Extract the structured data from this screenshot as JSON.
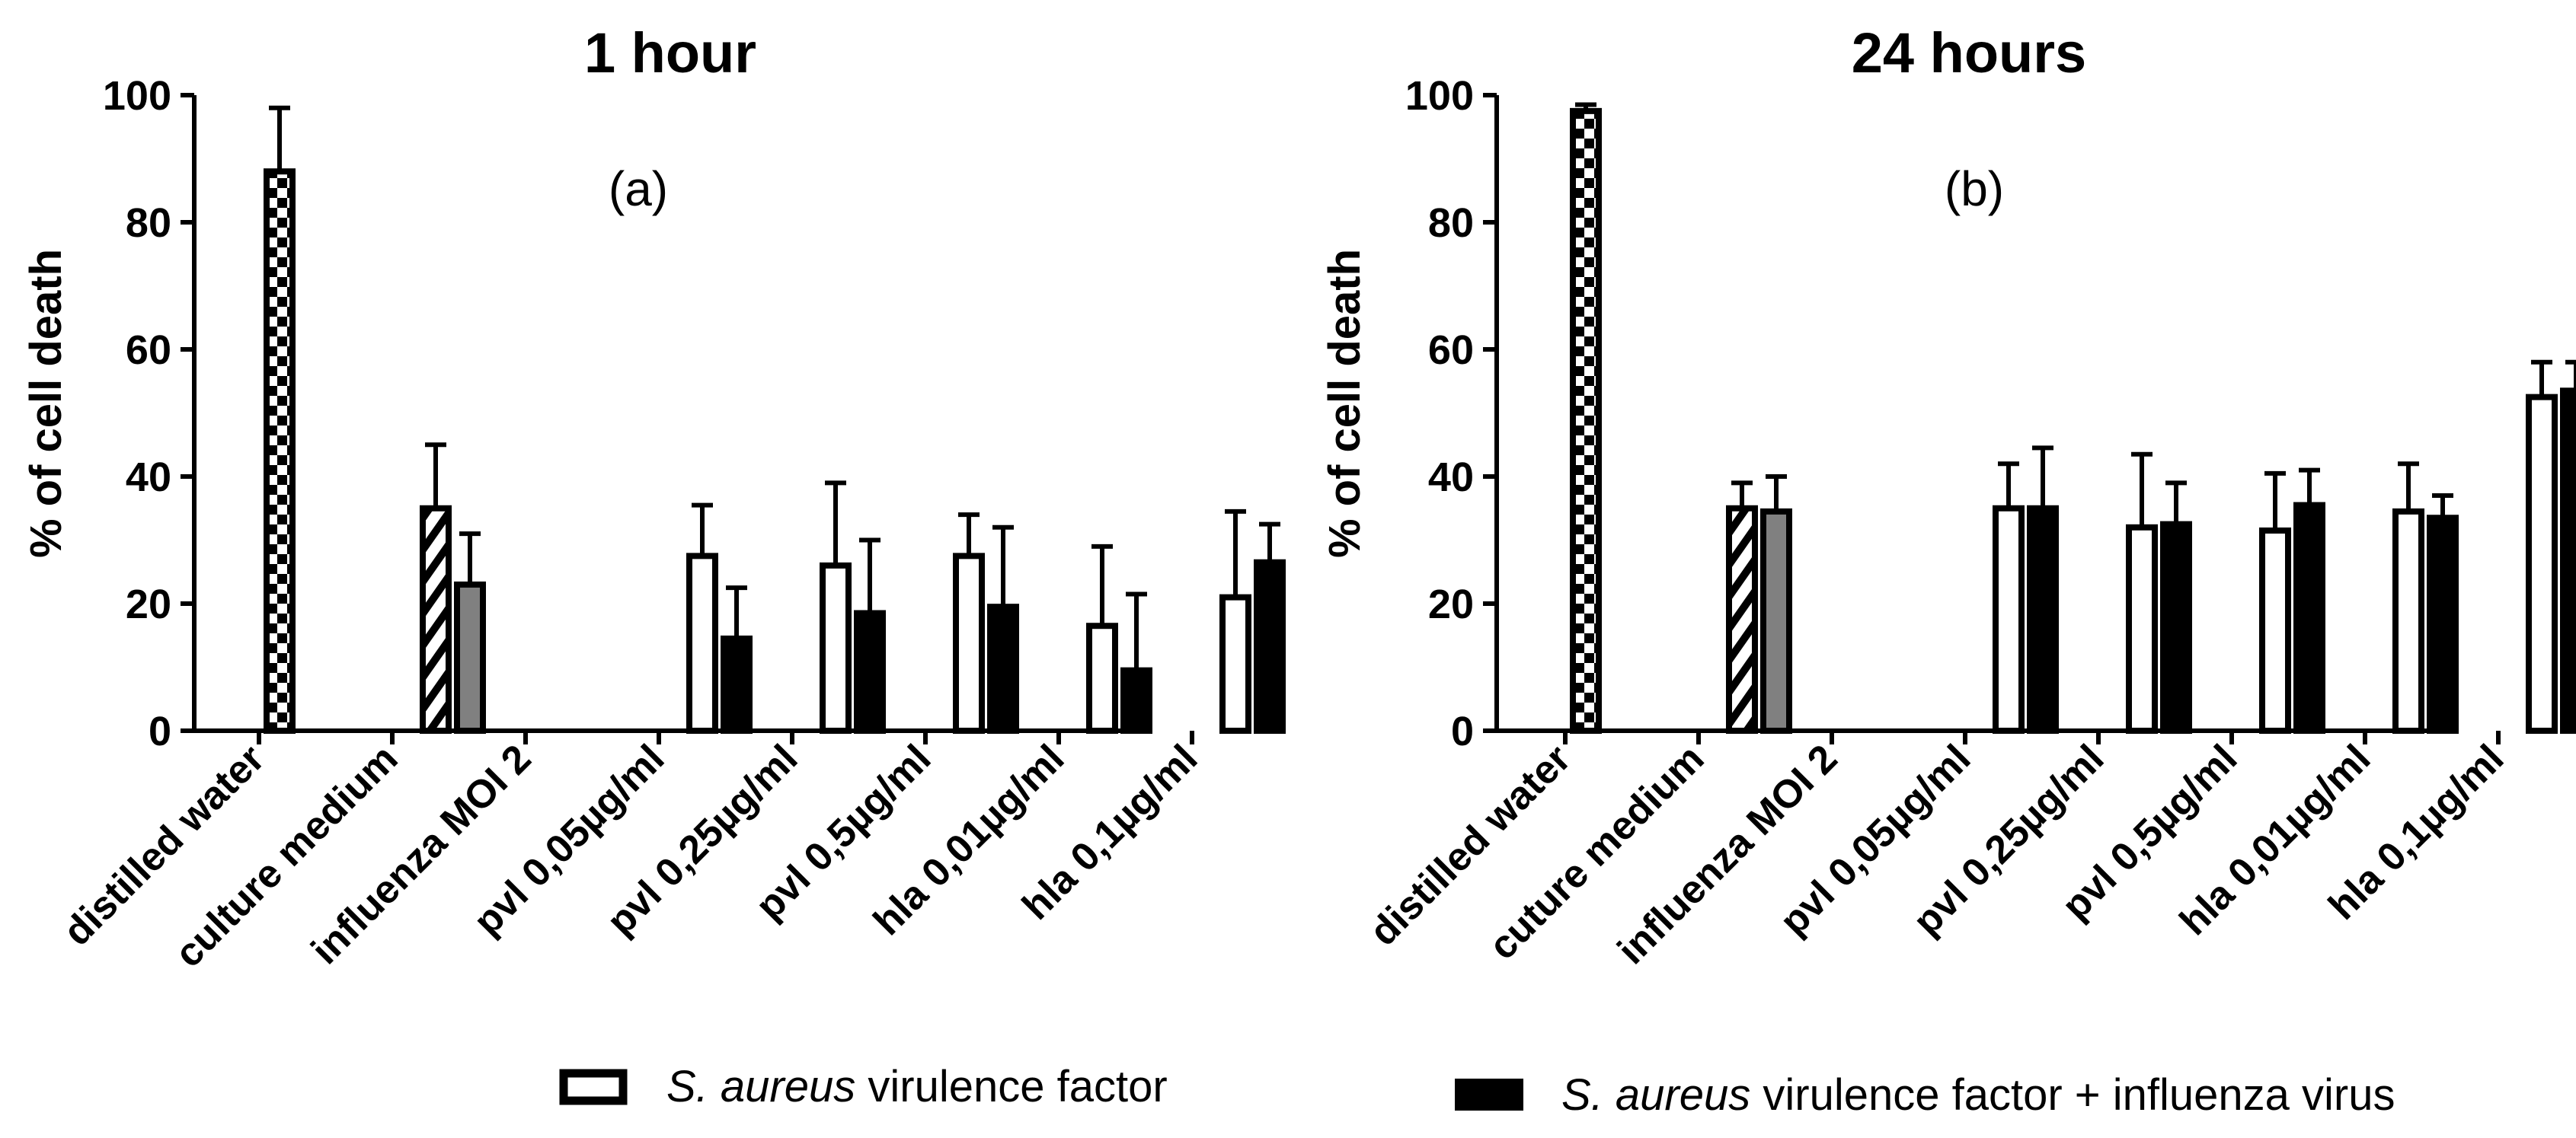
{
  "chart_data": [
    {
      "type": "bar",
      "title": "1 hour",
      "panel_label": "(a)",
      "ylabel": "% of cell death",
      "ylim": [
        0,
        100
      ],
      "yticks": [
        0,
        20,
        40,
        60,
        80,
        100
      ],
      "categories": [
        "distilled water",
        "culture medium",
        "influenza MOI 2",
        "pvl 0,05µg/ml",
        "pvl 0,25µg/ml",
        "pvl 0,5µg/ml",
        "hla 0,01µg/ml",
        "hla 0,1µg/ml"
      ],
      "bars": [
        {
          "category": 0,
          "style": "checker",
          "value": 88,
          "error": 10
        },
        {
          "category": 1,
          "style": "hatch",
          "value": 35,
          "error": 10
        },
        {
          "category": 1,
          "style": "gray",
          "value": 23,
          "error": 8
        },
        {
          "category": 3,
          "style": "white",
          "value": 27.5,
          "error": 8
        },
        {
          "category": 3,
          "style": "black",
          "value": 14.5,
          "error": 8
        },
        {
          "category": 4,
          "style": "white",
          "value": 26,
          "error": 13
        },
        {
          "category": 4,
          "style": "black",
          "value": 18.5,
          "error": 11.5
        },
        {
          "category": 5,
          "style": "white",
          "value": 27.5,
          "error": 6.5
        },
        {
          "category": 5,
          "style": "black",
          "value": 19.5,
          "error": 12.5
        },
        {
          "category": 6,
          "style": "white",
          "value": 16.5,
          "error": 12.5
        },
        {
          "category": 6,
          "style": "black",
          "value": 9.5,
          "error": 12
        },
        {
          "category": 7,
          "style": "white",
          "value": 21,
          "error": 13.5
        },
        {
          "category": 7,
          "style": "black",
          "value": 26.5,
          "error": 6
        }
      ]
    },
    {
      "type": "bar",
      "title": "24 hours",
      "panel_label": "(b)",
      "ylabel": "% of cell death",
      "ylim": [
        0,
        100
      ],
      "yticks": [
        0,
        20,
        40,
        60,
        80,
        100
      ],
      "categories": [
        "distilled water",
        "cuture medium",
        "influenza MOI 2",
        "pvl 0,05µg/ml",
        "pvl 0,25µg/ml",
        "pvl 0,5µg/ml",
        "hla 0,01µg/ml",
        "hla 0,1µg/ml"
      ],
      "bars": [
        {
          "category": 0,
          "style": "checker",
          "value": 97.5,
          "error": 1
        },
        {
          "category": 1,
          "style": "hatch",
          "value": 35,
          "error": 4
        },
        {
          "category": 1,
          "style": "gray",
          "value": 34.5,
          "error": 5.5
        },
        {
          "category": 3,
          "style": "white",
          "value": 35,
          "error": 7
        },
        {
          "category": 3,
          "style": "black",
          "value": 35,
          "error": 9.5
        },
        {
          "category": 4,
          "style": "white",
          "value": 32,
          "error": 11.5
        },
        {
          "category": 4,
          "style": "black",
          "value": 32.5,
          "error": 6.5
        },
        {
          "category": 5,
          "style": "white",
          "value": 31.5,
          "error": 9
        },
        {
          "category": 5,
          "style": "black",
          "value": 35.5,
          "error": 5.5
        },
        {
          "category": 6,
          "style": "white",
          "value": 34.5,
          "error": 7.5
        },
        {
          "category": 6,
          "style": "black",
          "value": 33.5,
          "error": 3.5
        },
        {
          "category": 7,
          "style": "white",
          "value": 52.5,
          "error": 5.5
        },
        {
          "category": 7,
          "style": "black",
          "value": 53.5,
          "error": 4.5
        }
      ]
    }
  ],
  "legend": {
    "item1": {
      "italic": "S. aureus",
      "rest": " virulence factor"
    },
    "item2": {
      "italic": "S. aureus",
      "rest": " virulence factor + influenza virus"
    }
  }
}
